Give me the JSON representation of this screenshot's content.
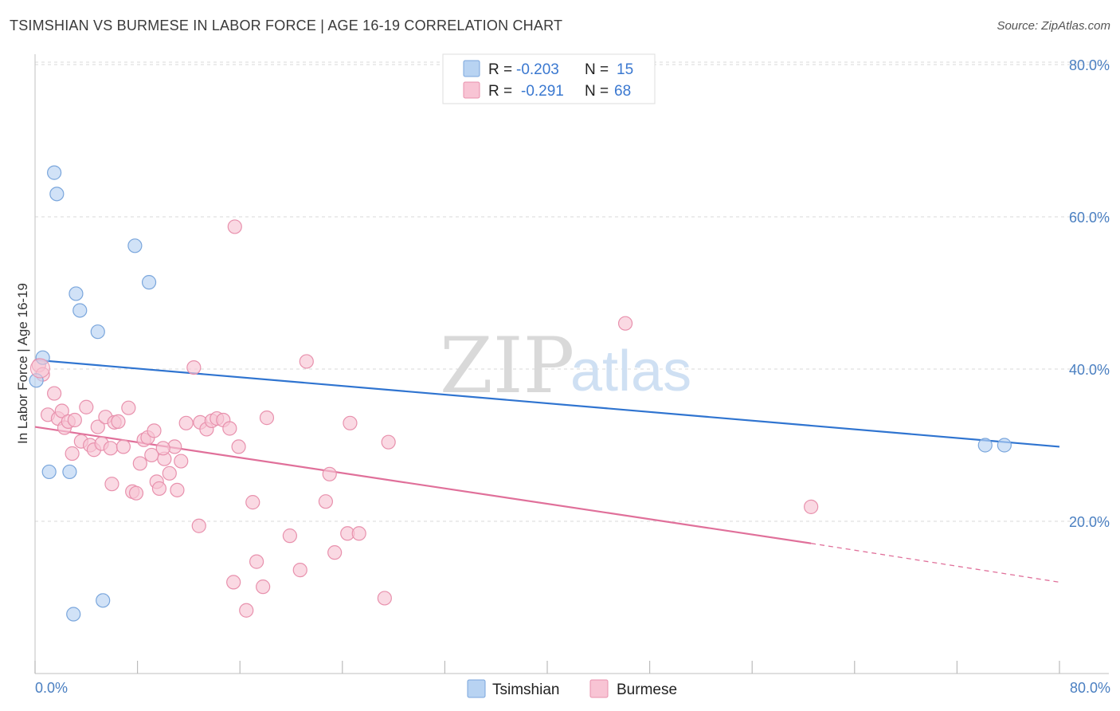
{
  "title": "TSIMSHIAN VS BURMESE IN LABOR FORCE | AGE 16-19 CORRELATION CHART",
  "source": "Source: ZipAtlas.com",
  "colors": {
    "tsimshian_fill": "#b8d3f2",
    "tsimshian_stroke": "#7aa6dc",
    "tsimshian_line": "#2f74d0",
    "burmese_fill": "#f8c4d4",
    "burmese_stroke": "#e891ad",
    "burmese_line": "#e0709a",
    "grid": "#d8d8d8",
    "axis_text": "#4a7fc1"
  },
  "legend": {
    "r_label": "R =",
    "n_label": "N =",
    "rows": [
      {
        "series": "Tsimshian",
        "r": "-0.203",
        "n": "15"
      },
      {
        "series": "Burmese",
        "r": "-0.291",
        "n": "68"
      }
    ]
  },
  "watermark": {
    "zip": "ZIP",
    "atlas": "atlas"
  },
  "chart_data": {
    "type": "scatter",
    "title": "TSIMSHIAN VS BURMESE IN LABOR FORCE | AGE 16-19 CORRELATION CHART",
    "xlabel": "",
    "ylabel": "In Labor Force | Age 16-19",
    "xlim": [
      0,
      80
    ],
    "ylim": [
      0,
      82
    ],
    "x_tick_labels": [
      "0.0%",
      "80.0%"
    ],
    "y_ticks": [
      20,
      40,
      60,
      80
    ],
    "y_tick_labels": [
      "20.0%",
      "40.0%",
      "60.0%",
      "80.0%"
    ],
    "grid": true,
    "legend_position": "bottom-center",
    "series": [
      {
        "name": "Tsimshian",
        "points": [
          [
            0.1,
            38.5
          ],
          [
            0.6,
            41.5
          ],
          [
            1.1,
            26.5
          ],
          [
            1.5,
            65.8
          ],
          [
            1.7,
            63.0
          ],
          [
            2.7,
            26.5
          ],
          [
            3.0,
            7.8
          ],
          [
            3.2,
            49.9
          ],
          [
            3.5,
            47.7
          ],
          [
            4.9,
            44.9
          ],
          [
            5.3,
            9.6
          ],
          [
            7.8,
            56.2
          ],
          [
            8.9,
            51.4
          ],
          [
            74.2,
            30.0
          ],
          [
            75.7,
            30.0
          ]
        ],
        "trend": {
          "x0": 0,
          "y0": 41.2,
          "x1": 80,
          "y1": 29.8
        }
      },
      {
        "name": "Burmese",
        "points": [
          [
            0.3,
            40.5
          ],
          [
            0.6,
            39.3
          ],
          [
            1.0,
            34.0
          ],
          [
            1.5,
            36.8
          ],
          [
            1.8,
            33.5
          ],
          [
            2.1,
            34.5
          ],
          [
            2.3,
            32.3
          ],
          [
            2.6,
            33.1
          ],
          [
            2.9,
            28.9
          ],
          [
            3.1,
            33.3
          ],
          [
            3.6,
            30.5
          ],
          [
            4.0,
            35.0
          ],
          [
            4.3,
            30.0
          ],
          [
            4.6,
            29.4
          ],
          [
            4.9,
            32.4
          ],
          [
            5.2,
            30.2
          ],
          [
            5.5,
            33.7
          ],
          [
            5.9,
            29.6
          ],
          [
            6.2,
            33.0
          ],
          [
            6.5,
            33.1
          ],
          [
            6.9,
            29.8
          ],
          [
            7.3,
            34.9
          ],
          [
            7.6,
            23.9
          ],
          [
            7.9,
            23.7
          ],
          [
            8.2,
            27.6
          ],
          [
            8.5,
            30.7
          ],
          [
            8.8,
            31.0
          ],
          [
            9.1,
            28.7
          ],
          [
            9.5,
            25.2
          ],
          [
            9.7,
            24.3
          ],
          [
            10.1,
            28.2
          ],
          [
            10.5,
            26.3
          ],
          [
            10.9,
            29.8
          ],
          [
            11.1,
            24.1
          ],
          [
            11.4,
            27.9
          ],
          [
            11.8,
            32.9
          ],
          [
            12.4,
            40.2
          ],
          [
            12.9,
            33.0
          ],
          [
            13.4,
            32.1
          ],
          [
            13.8,
            33.2
          ],
          [
            14.2,
            33.5
          ],
          [
            14.7,
            33.3
          ],
          [
            15.2,
            32.2
          ],
          [
            15.5,
            12.0
          ],
          [
            15.9,
            29.8
          ],
          [
            15.6,
            58.7
          ],
          [
            16.5,
            8.3
          ],
          [
            17.0,
            22.5
          ],
          [
            17.3,
            14.7
          ],
          [
            17.8,
            11.4
          ],
          [
            18.1,
            33.6
          ],
          [
            12.8,
            19.4
          ],
          [
            19.9,
            18.1
          ],
          [
            20.7,
            13.6
          ],
          [
            21.2,
            41.0
          ],
          [
            22.7,
            22.6
          ],
          [
            23.0,
            26.2
          ],
          [
            23.4,
            15.9
          ],
          [
            24.4,
            18.4
          ],
          [
            24.6,
            32.9
          ],
          [
            25.3,
            18.4
          ],
          [
            27.3,
            9.9
          ],
          [
            27.6,
            30.4
          ],
          [
            46.1,
            46.0
          ],
          [
            60.6,
            21.9
          ],
          [
            10.0,
            29.6
          ],
          [
            9.3,
            31.9
          ],
          [
            6.0,
            24.9
          ]
        ],
        "trend": {
          "x0": 0,
          "y0": 32.4,
          "x1": 60.6,
          "y1": 17.1,
          "dash_to_x": 80,
          "dash_to_y": 12.0
        }
      }
    ]
  }
}
